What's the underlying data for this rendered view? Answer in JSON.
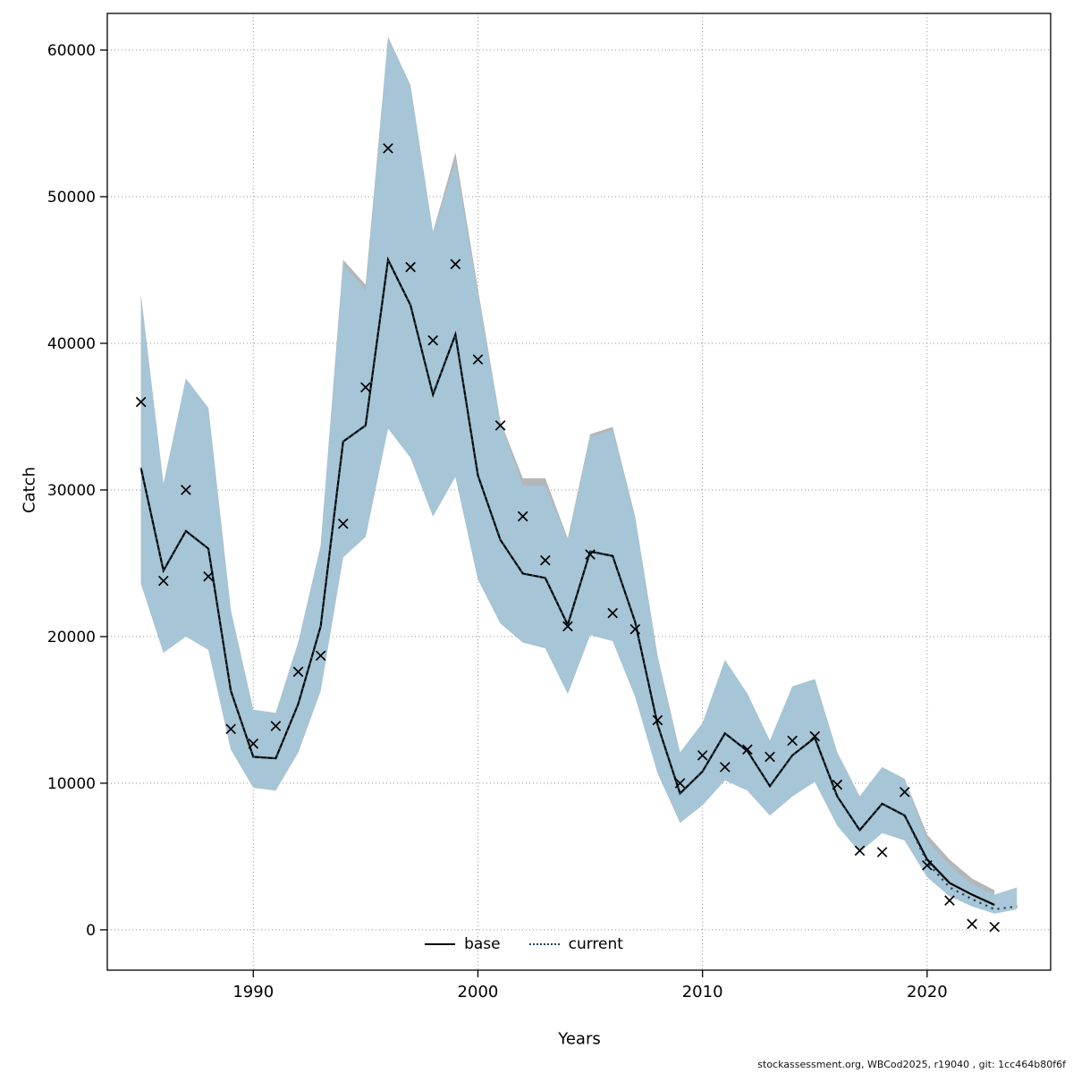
{
  "chart_data": {
    "type": "line",
    "title": "",
    "xlabel": "Years",
    "ylabel": "Catch",
    "xlim": [
      1983.5,
      2025.5
    ],
    "ylim": [
      -2750,
      62500
    ],
    "xticks": [
      1990,
      2000,
      2010,
      2020
    ],
    "yticks": [
      0,
      10000,
      20000,
      30000,
      40000,
      50000,
      60000
    ],
    "grid": true,
    "legend_position": "bottom",
    "colors": {
      "marker": "#000000",
      "grid": "#909090",
      "frame": "#000000"
    },
    "years": [
      1985,
      1986,
      1987,
      1988,
      1989,
      1990,
      1991,
      1992,
      1993,
      1994,
      1995,
      1996,
      1997,
      1998,
      1999,
      2000,
      2001,
      2002,
      2003,
      2004,
      2005,
      2006,
      2007,
      2008,
      2009,
      2010,
      2011,
      2012,
      2013,
      2014,
      2015,
      2016,
      2017,
      2018,
      2019,
      2020,
      2021,
      2022,
      2023
    ],
    "observations": [
      36000,
      23800,
      30000,
      24100,
      13700,
      12700,
      13900,
      17600,
      18700,
      27700,
      37000,
      53300,
      45200,
      40200,
      45400,
      38900,
      34400,
      28200,
      25200,
      20700,
      25600,
      21600,
      20500,
      14300,
      10000,
      11900,
      11100,
      12300,
      11800,
      12900,
      13200,
      9900,
      5400,
      5300,
      9400,
      4400,
      2000,
      400,
      200
    ],
    "series": [
      {
        "name": "base",
        "style": "solid",
        "color": "#000000",
        "band_color": "#b3b7b9",
        "band_opacity": 1,
        "years": [
          1985,
          1986,
          1987,
          1988,
          1989,
          1990,
          1991,
          1992,
          1993,
          1994,
          1995,
          1996,
          1997,
          1998,
          1999,
          2000,
          2001,
          2002,
          2003,
          2004,
          2005,
          2006,
          2007,
          2008,
          2009,
          2010,
          2011,
          2012,
          2013,
          2014,
          2015,
          2016,
          2017,
          2018,
          2019,
          2020,
          2021,
          2022,
          2023
        ],
        "values": [
          31500,
          24500,
          27200,
          26000,
          16300,
          11800,
          11700,
          15400,
          20700,
          33300,
          34400,
          45700,
          42600,
          36500,
          40600,
          31000,
          26600,
          24300,
          24000,
          20800,
          25800,
          25500,
          21000,
          14000,
          9300,
          10800,
          13400,
          12200,
          9800,
          11900,
          13100,
          9100,
          6800,
          8600,
          7800,
          4800,
          3200,
          2400,
          1700
        ],
        "band_lower": [
          23600,
          18900,
          20000,
          19100,
          12300,
          9700,
          9500,
          12100,
          16300,
          25400,
          26800,
          34200,
          32200,
          28200,
          30900,
          23900,
          20900,
          19600,
          19200,
          16100,
          20100,
          19700,
          15900,
          10700,
          7300,
          8500,
          10200,
          9500,
          7800,
          9100,
          10100,
          7100,
          5300,
          6600,
          6100,
          3600,
          2300,
          1600,
          1200
        ],
        "band_upper": [
          43300,
          30400,
          37600,
          35600,
          21800,
          15000,
          14800,
          19600,
          26200,
          45700,
          44000,
          60900,
          57600,
          47600,
          53000,
          43700,
          34700,
          30800,
          30800,
          26700,
          33800,
          34300,
          28200,
          18700,
          12100,
          14100,
          18400,
          16100,
          12900,
          16600,
          17100,
          12100,
          9100,
          11100,
          10300,
          6500,
          4800,
          3500,
          2700
        ]
      },
      {
        "name": "current",
        "style": "dotted",
        "color": "#1c4557",
        "band_color": "#a5c5d7",
        "band_opacity": 0.95,
        "years": [
          1985,
          1986,
          1987,
          1988,
          1989,
          1990,
          1991,
          1992,
          1993,
          1994,
          1995,
          1996,
          1997,
          1998,
          1999,
          2000,
          2001,
          2002,
          2003,
          2004,
          2005,
          2006,
          2007,
          2008,
          2009,
          2010,
          2011,
          2012,
          2013,
          2014,
          2015,
          2016,
          2017,
          2018,
          2019,
          2020,
          2021,
          2022,
          2023,
          2024
        ],
        "values": [
          31500,
          24500,
          27200,
          26000,
          16300,
          11800,
          11700,
          15400,
          20700,
          33300,
          34400,
          45700,
          42600,
          36500,
          40600,
          31000,
          26600,
          24300,
          24000,
          20800,
          25800,
          25500,
          21000,
          14000,
          9300,
          10800,
          13400,
          12200,
          9800,
          11900,
          13100,
          9100,
          6800,
          8600,
          7800,
          4600,
          2900,
          2100,
          1400,
          1600
        ],
        "band_lower": [
          23600,
          18900,
          20000,
          19100,
          12300,
          9700,
          9500,
          12100,
          16300,
          25400,
          26800,
          34200,
          32200,
          28200,
          30900,
          23900,
          20900,
          19600,
          19200,
          16100,
          20100,
          19700,
          15900,
          10700,
          7300,
          8500,
          10200,
          9500,
          7800,
          9100,
          10100,
          7100,
          5300,
          6600,
          6100,
          3600,
          2300,
          1600,
          1100,
          1400
        ],
        "band_upper": [
          43300,
          30400,
          37600,
          35600,
          21800,
          15000,
          14800,
          19600,
          26200,
          45400,
          43600,
          60800,
          57500,
          47500,
          52400,
          43400,
          34600,
          30300,
          30300,
          26600,
          33600,
          34100,
          28100,
          18600,
          12100,
          14100,
          18400,
          16100,
          12900,
          16600,
          17100,
          12100,
          9100,
          11100,
          10300,
          6100,
          4400,
          3100,
          2400,
          2900
        ]
      }
    ]
  },
  "legend": {
    "items": [
      {
        "label": "base"
      },
      {
        "label": "current"
      }
    ]
  },
  "footer": {
    "credit": "stockassessment.org, WBCod2025, r19040 , git: 1cc464b80f6f"
  }
}
